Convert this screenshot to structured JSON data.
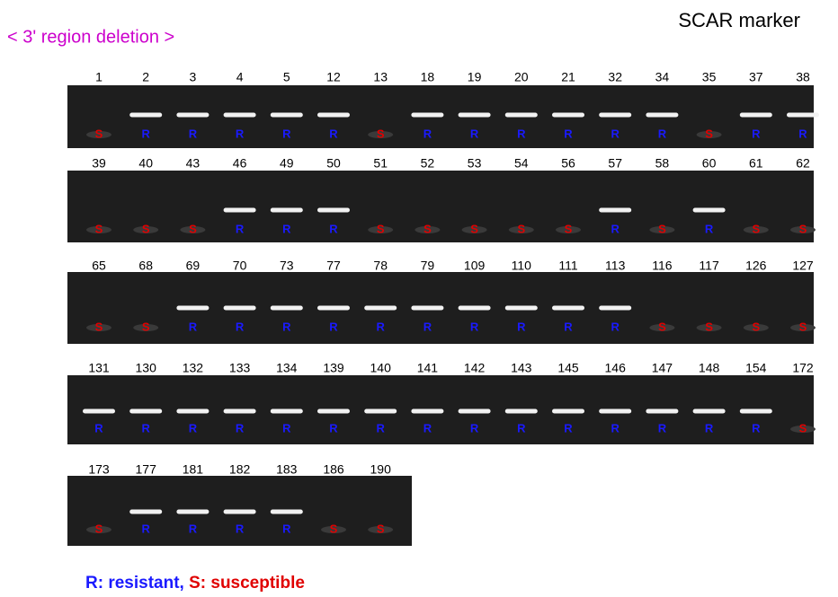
{
  "header": {
    "title": "< 3' region deletion >",
    "marker": "SCAR marker"
  },
  "gels": [
    {
      "lanes": [
        {
          "label": "1",
          "call": "S"
        },
        {
          "label": "2",
          "call": "R"
        },
        {
          "label": "3",
          "call": "R"
        },
        {
          "label": "4",
          "call": "R"
        },
        {
          "label": "5",
          "call": "R"
        },
        {
          "label": "12",
          "call": "R"
        },
        {
          "label": "13",
          "call": "S"
        },
        {
          "label": "18",
          "call": "R"
        },
        {
          "label": "19",
          "call": "R"
        },
        {
          "label": "20",
          "call": "R"
        },
        {
          "label": "21",
          "call": "R"
        },
        {
          "label": "32",
          "call": "R"
        },
        {
          "label": "34",
          "call": "R"
        },
        {
          "label": "35",
          "call": "S"
        },
        {
          "label": "37",
          "call": "R"
        },
        {
          "label": "38",
          "call": "R"
        }
      ]
    },
    {
      "lanes": [
        {
          "label": "39",
          "call": "S"
        },
        {
          "label": "40",
          "call": "S"
        },
        {
          "label": "43",
          "call": "S"
        },
        {
          "label": "46",
          "call": "R"
        },
        {
          "label": "49",
          "call": "R"
        },
        {
          "label": "50",
          "call": "R"
        },
        {
          "label": "51",
          "call": "S"
        },
        {
          "label": "52",
          "call": "S"
        },
        {
          "label": "53",
          "call": "S"
        },
        {
          "label": "54",
          "call": "S"
        },
        {
          "label": "56",
          "call": "S"
        },
        {
          "label": "57",
          "call": "R"
        },
        {
          "label": "58",
          "call": "S"
        },
        {
          "label": "60",
          "call": "R"
        },
        {
          "label": "61",
          "call": "S"
        },
        {
          "label": "62",
          "call": "S"
        }
      ]
    },
    {
      "lanes": [
        {
          "label": "65",
          "call": "S"
        },
        {
          "label": "68",
          "call": "S"
        },
        {
          "label": "69",
          "call": "R"
        },
        {
          "label": "70",
          "call": "R"
        },
        {
          "label": "73",
          "call": "R"
        },
        {
          "label": "77",
          "call": "R"
        },
        {
          "label": "78",
          "call": "R"
        },
        {
          "label": "79",
          "call": "R"
        },
        {
          "label": "109",
          "call": "R"
        },
        {
          "label": "110",
          "call": "R"
        },
        {
          "label": "111",
          "call": "R"
        },
        {
          "label": "113",
          "call": "R"
        },
        {
          "label": "116",
          "call": "S"
        },
        {
          "label": "117",
          "call": "S"
        },
        {
          "label": "126",
          "call": "S"
        },
        {
          "label": "127",
          "call": "S"
        }
      ]
    },
    {
      "lanes": [
        {
          "label": "131",
          "call": "R"
        },
        {
          "label": "130",
          "call": "R"
        },
        {
          "label": "132",
          "call": "R"
        },
        {
          "label": "133",
          "call": "R"
        },
        {
          "label": "134",
          "call": "R"
        },
        {
          "label": "139",
          "call": "R"
        },
        {
          "label": "140",
          "call": "R"
        },
        {
          "label": "141",
          "call": "R"
        },
        {
          "label": "142",
          "call": "R"
        },
        {
          "label": "143",
          "call": "R"
        },
        {
          "label": "145",
          "call": "R"
        },
        {
          "label": "146",
          "call": "R"
        },
        {
          "label": "147",
          "call": "R"
        },
        {
          "label": "148",
          "call": "R"
        },
        {
          "label": "154",
          "call": "R"
        },
        {
          "label": "172",
          "call": "S"
        }
      ]
    },
    {
      "lanes": [
        {
          "label": "173",
          "call": "S"
        },
        {
          "label": "177",
          "call": "R"
        },
        {
          "label": "181",
          "call": "R"
        },
        {
          "label": "182",
          "call": "R"
        },
        {
          "label": "183",
          "call": "R"
        },
        {
          "label": "186",
          "call": "S"
        },
        {
          "label": "190",
          "call": "S"
        }
      ]
    }
  ],
  "legend": {
    "items": [
      "R: resistant",
      "S: susceptible"
    ],
    "separator": ","
  }
}
